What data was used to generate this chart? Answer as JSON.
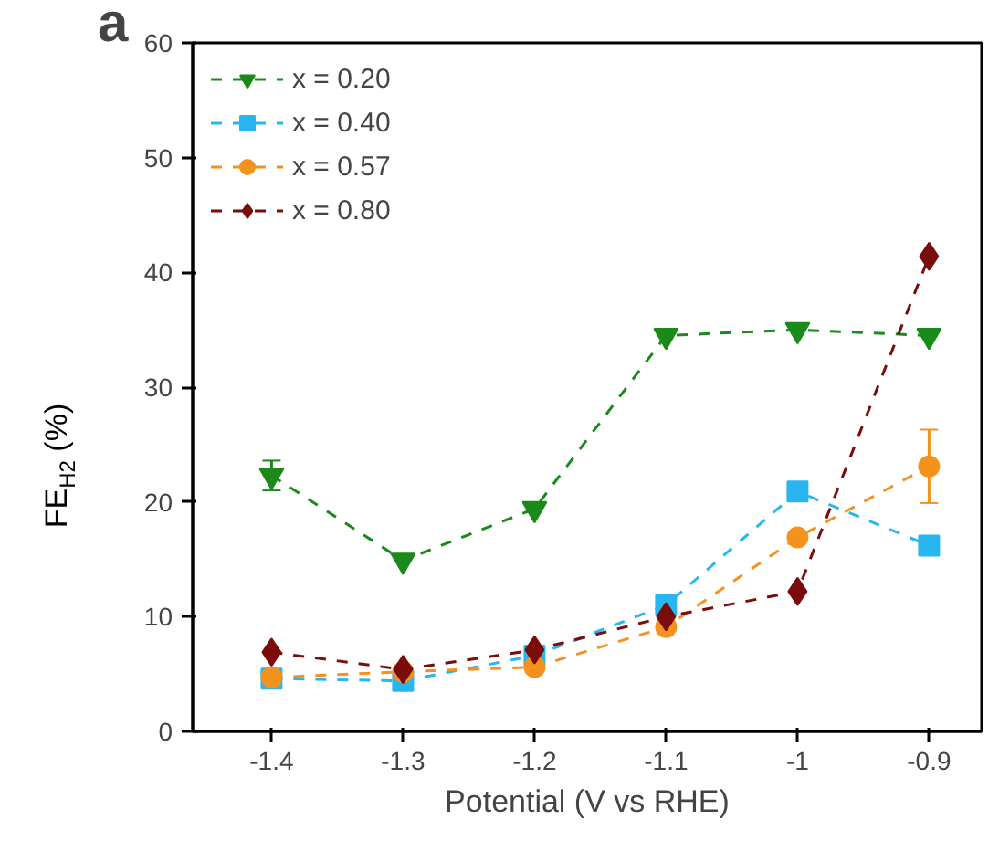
{
  "chart_data": {
    "type": "line",
    "xlabel": "Potential (V vs RHE)",
    "ylabel": "FE$_{H2}$ (%)",
    "annotations": [
      "a"
    ],
    "x": [
      -1.4,
      -1.3,
      -1.2,
      -1.1,
      -1.0,
      -0.9
    ],
    "xlim": [
      -1.46,
      -0.86
    ],
    "xticks": [
      -1.4,
      -1.3,
      -1.2,
      -1.1,
      -1.0,
      -0.9
    ],
    "ylim": [
      0,
      60
    ],
    "yticks": [
      0,
      10,
      20,
      30,
      40,
      50,
      60
    ],
    "grid": false,
    "legend": "top left",
    "line_style": "dashed",
    "series": [
      {
        "name": "x = 0.20",
        "color": "#1a8a1a",
        "marker": "triangle",
        "values": [
          22.3,
          14.9,
          19.4,
          34.5,
          35.0,
          34.5
        ],
        "errors": [
          1.3,
          null,
          null,
          null,
          null,
          null
        ]
      },
      {
        "name": "x = 0.40",
        "color": "#29b6f0",
        "marker": "square",
        "values": [
          4.6,
          4.4,
          6.6,
          11.0,
          20.9,
          16.2
        ]
      },
      {
        "name": "x = 0.57",
        "color": "#f5921e",
        "marker": "circle",
        "values": [
          4.7,
          5.2,
          5.6,
          9.1,
          16.9,
          23.1
        ],
        "errors": [
          null,
          null,
          null,
          null,
          null,
          3.2
        ]
      },
      {
        "name": "x = 0.80",
        "color": "#7a0c0c",
        "marker": "diamond",
        "values": [
          6.9,
          5.4,
          7.1,
          10.0,
          12.2,
          41.4
        ]
      }
    ]
  }
}
